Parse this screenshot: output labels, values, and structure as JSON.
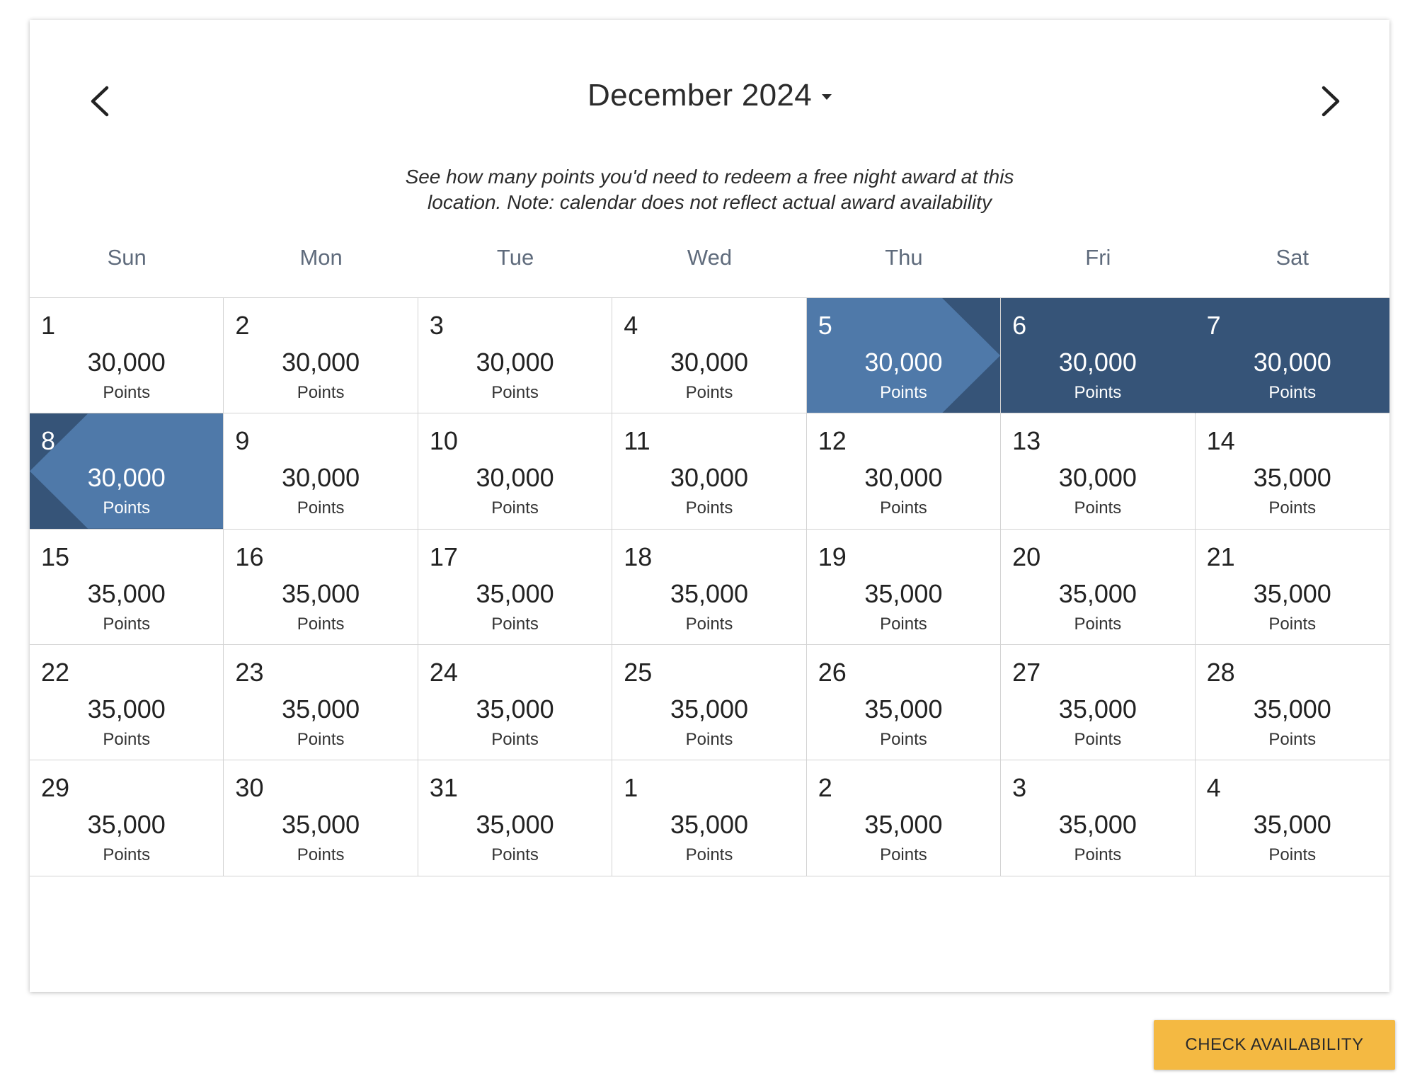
{
  "header": {
    "month_title": "December 2024",
    "prev_icon": "chevron-left-icon",
    "next_icon": "chevron-right-icon",
    "dropdown_icon": "caret-down-icon"
  },
  "note": {
    "line1": "See how many points you'd need to redeem a free night award at this",
    "line2": "location. Note: calendar does not reflect actual award availability"
  },
  "weekdays": [
    "Sun",
    "Mon",
    "Tue",
    "Wed",
    "Thu",
    "Fri",
    "Sat"
  ],
  "points_label": "Points",
  "days": [
    {
      "day": "1",
      "points": "30,000",
      "state": ""
    },
    {
      "day": "2",
      "points": "30,000",
      "state": ""
    },
    {
      "day": "3",
      "points": "30,000",
      "state": ""
    },
    {
      "day": "4",
      "points": "30,000",
      "state": ""
    },
    {
      "day": "5",
      "points": "30,000",
      "state": "start"
    },
    {
      "day": "6",
      "points": "30,000",
      "state": "range"
    },
    {
      "day": "7",
      "points": "30,000",
      "state": "range"
    },
    {
      "day": "8",
      "points": "30,000",
      "state": "end"
    },
    {
      "day": "9",
      "points": "30,000",
      "state": ""
    },
    {
      "day": "10",
      "points": "30,000",
      "state": ""
    },
    {
      "day": "11",
      "points": "30,000",
      "state": ""
    },
    {
      "day": "12",
      "points": "30,000",
      "state": ""
    },
    {
      "day": "13",
      "points": "30,000",
      "state": ""
    },
    {
      "day": "14",
      "points": "35,000",
      "state": ""
    },
    {
      "day": "15",
      "points": "35,000",
      "state": ""
    },
    {
      "day": "16",
      "points": "35,000",
      "state": ""
    },
    {
      "day": "17",
      "points": "35,000",
      "state": ""
    },
    {
      "day": "18",
      "points": "35,000",
      "state": ""
    },
    {
      "day": "19",
      "points": "35,000",
      "state": ""
    },
    {
      "day": "20",
      "points": "35,000",
      "state": ""
    },
    {
      "day": "21",
      "points": "35,000",
      "state": ""
    },
    {
      "day": "22",
      "points": "35,000",
      "state": ""
    },
    {
      "day": "23",
      "points": "35,000",
      "state": ""
    },
    {
      "day": "24",
      "points": "35,000",
      "state": ""
    },
    {
      "day": "25",
      "points": "35,000",
      "state": ""
    },
    {
      "day": "26",
      "points": "35,000",
      "state": ""
    },
    {
      "day": "27",
      "points": "35,000",
      "state": ""
    },
    {
      "day": "28",
      "points": "35,000",
      "state": ""
    },
    {
      "day": "29",
      "points": "35,000",
      "state": ""
    },
    {
      "day": "30",
      "points": "35,000",
      "state": ""
    },
    {
      "day": "31",
      "points": "35,000",
      "state": ""
    },
    {
      "day": "1",
      "points": "35,000",
      "state": ""
    },
    {
      "day": "2",
      "points": "35,000",
      "state": ""
    },
    {
      "day": "3",
      "points": "35,000",
      "state": ""
    },
    {
      "day": "4",
      "points": "35,000",
      "state": ""
    }
  ],
  "colors": {
    "range": "#365478",
    "endpoint": "#4f79a9",
    "button": "#f4b942"
  },
  "footer": {
    "check_label": "CHECK AVAILABILITY"
  }
}
